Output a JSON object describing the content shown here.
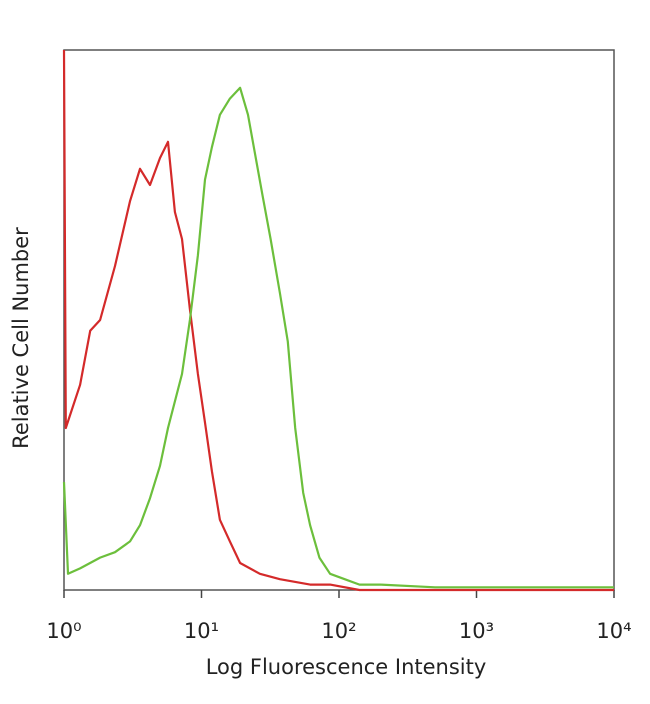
{
  "chart_data": {
    "type": "line",
    "xscale": "log",
    "xlabel": "Log Fluorescence Intensity",
    "ylabel": "Relative Cell Number",
    "xlim": [
      1,
      10000
    ],
    "ylim": [
      0,
      100
    ],
    "xticks": [
      {
        "value": 1,
        "label": "10⁰"
      },
      {
        "value": 10,
        "label": "10¹"
      },
      {
        "value": 100,
        "label": "10²"
      },
      {
        "value": 1000,
        "label": "10³"
      },
      {
        "value": 10000,
        "label": "10⁴"
      }
    ],
    "series": [
      {
        "color": "#d42a2a",
        "x": [
          1,
          1.03,
          1.31,
          1.55,
          1.83,
          2.35,
          3.02,
          3.57,
          4.22,
          4.99,
          5.71,
          6.41,
          7.21,
          8.24,
          9.41,
          10.6,
          11.9,
          13.6,
          16.1,
          19.1,
          26.6,
          37.2,
          61.6,
          86.1,
          141,
          640,
          10000
        ],
        "values": [
          100,
          30,
          38,
          48,
          50,
          60,
          72,
          78,
          75,
          80,
          83,
          70,
          65,
          52,
          40,
          31,
          22,
          13,
          9,
          5,
          3,
          2,
          1,
          1,
          0,
          0,
          0
        ]
      },
      {
        "color": "#6cbf3c",
        "x": [
          1,
          1.07,
          1.31,
          1.83,
          2.35,
          3.02,
          3.57,
          4.22,
          4.99,
          5.71,
          7.21,
          8.24,
          9.41,
          10.6,
          11.9,
          13.6,
          16.1,
          19.1,
          21.8,
          24.4,
          27.8,
          31.8,
          37.2,
          42.4,
          48,
          54.9,
          61.6,
          72,
          86.1,
          110,
          141,
          200,
          500,
          1000,
          5000,
          10000
        ],
        "values": [
          20,
          3,
          4,
          6,
          7,
          9,
          12,
          17,
          23,
          30,
          40,
          50,
          62,
          76,
          82,
          88,
          91,
          93,
          88,
          81,
          73,
          65,
          55,
          46,
          30,
          18,
          12,
          6,
          3,
          2,
          1,
          1,
          0.5,
          0.5,
          0.5,
          0.5
        ]
      }
    ]
  }
}
